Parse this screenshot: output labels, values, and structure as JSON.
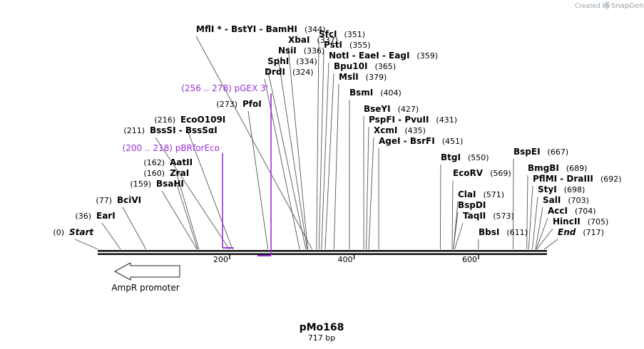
{
  "credit": {
    "prefix": "Created by",
    "brand": "SnapGene"
  },
  "plasmid": {
    "name": "pMo168",
    "length_label": "717 bp",
    "length": 717
  },
  "ticks": [
    {
      "pos": 200,
      "label": "200"
    },
    {
      "pos": 400,
      "label": "400"
    },
    {
      "pos": 600,
      "label": "600"
    }
  ],
  "feature": {
    "name": "AmpR promoter",
    "direction": "reverse"
  },
  "primers": [
    {
      "name": "pBRforEco",
      "range": "(200 .. 218)",
      "start": 200,
      "end": 218
    },
    {
      "name": "pGEX 3'",
      "range": "(256 .. 278)",
      "start": 256,
      "end": 278
    }
  ],
  "sites": [
    {
      "name": "Start",
      "pos_label": "(0)",
      "pos": 0,
      "italic": true
    },
    {
      "name": "EarI",
      "pos_label": "(36)",
      "pos": 36
    },
    {
      "name": "BciVI",
      "pos_label": "(77)",
      "pos": 77
    },
    {
      "name": "BsaHI",
      "pos_label": "(159)",
      "pos": 159
    },
    {
      "name": "ZraI",
      "pos_label": "(160)",
      "pos": 160
    },
    {
      "name": "AatII",
      "pos_label": "(162)",
      "pos": 162
    },
    {
      "name": "BssSI  -  BssSαI",
      "pos_label": "(211)",
      "pos": 211
    },
    {
      "name": "EcoO109I",
      "pos_label": "(216)",
      "pos": 216
    },
    {
      "name": "PfoI",
      "pos_label": "(273)",
      "pos": 273
    },
    {
      "name": "DrdI",
      "pos_label": "(324)",
      "pos": 324
    },
    {
      "name": "SphI",
      "pos_label": "(334)",
      "pos": 334
    },
    {
      "name": "NsiI",
      "pos_label": "(336)",
      "pos": 336
    },
    {
      "name": "XbaI",
      "pos_label": "(337)",
      "pos": 337
    },
    {
      "name": "MflI *  -  BstYI  -  BamHI",
      "pos_label": "(344)",
      "pos": 344
    },
    {
      "name": "SfcI",
      "pos_label": "(351)",
      "pos": 351
    },
    {
      "name": "PstI",
      "pos_label": "(355)",
      "pos": 355
    },
    {
      "name": "NotI  -  EaeI  -  EagI",
      "pos_label": "(359)",
      "pos": 359
    },
    {
      "name": "Bpu10I",
      "pos_label": "(365)",
      "pos": 365
    },
    {
      "name": "MslI",
      "pos_label": "(379)",
      "pos": 379
    },
    {
      "name": "BsmI",
      "pos_label": "(404)",
      "pos": 404
    },
    {
      "name": "BseYI",
      "pos_label": "(427)",
      "pos": 427
    },
    {
      "name": "PspFI  -  PvuII",
      "pos_label": "(431)",
      "pos": 431
    },
    {
      "name": "XcmI",
      "pos_label": "(435)",
      "pos": 435
    },
    {
      "name": "AgeI  -  BsrFI",
      "pos_label": "(451)",
      "pos": 451
    },
    {
      "name": "BtgI",
      "pos_label": "(550)",
      "pos": 550
    },
    {
      "name": "EcoRV",
      "pos_label": "(569)",
      "pos": 569
    },
    {
      "name": "ClaI",
      "pos_label": "(571)",
      "pos": 571
    },
    {
      "name": "BspDI",
      "pos_label": "",
      "pos": 571
    },
    {
      "name": "TaqII",
      "pos_label": "(573)",
      "pos": 573
    },
    {
      "name": "BbsI",
      "pos_label": "(611)",
      "pos": 611
    },
    {
      "name": "BspEI",
      "pos_label": "(667)",
      "pos": 667
    },
    {
      "name": "BmgBI",
      "pos_label": "(689)",
      "pos": 689
    },
    {
      "name": "PflMI  -  DraIII",
      "pos_label": "(692)",
      "pos": 692
    },
    {
      "name": "StyI",
      "pos_label": "(698)",
      "pos": 698
    },
    {
      "name": "SalI",
      "pos_label": "(703)",
      "pos": 703
    },
    {
      "name": "AccI",
      "pos_label": "(704)",
      "pos": 704
    },
    {
      "name": "HincII",
      "pos_label": "(705)",
      "pos": 705
    },
    {
      "name": "End",
      "pos_label": "(717)",
      "pos": 717,
      "italic": true
    }
  ]
}
